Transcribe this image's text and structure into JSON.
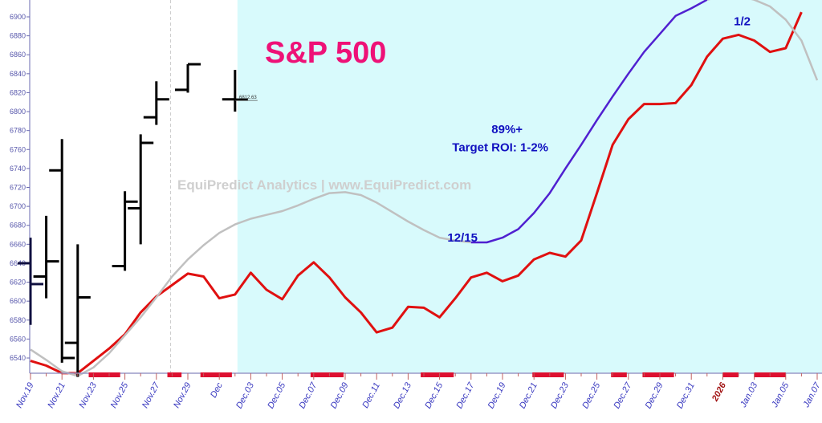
{
  "chart_data": {
    "type": "line",
    "title": "S&P 500",
    "watermark": "EquiPredict Analytics | www.EquiPredict.com",
    "ylim": [
      6520,
      6920
    ],
    "yticks": [
      6540,
      6560,
      6580,
      6600,
      6620,
      6640,
      6660,
      6680,
      6700,
      6720,
      6740,
      6760,
      6780,
      6800,
      6820,
      6840,
      6860,
      6880,
      6900
    ],
    "xlim": [
      0,
      50.3
    ],
    "xticks": [
      {
        "i": 0,
        "label": "Nov.19"
      },
      {
        "i": 2,
        "label": "Nov.21"
      },
      {
        "i": 4,
        "label": "Nov.23"
      },
      {
        "i": 6,
        "label": "Nov.25"
      },
      {
        "i": 8,
        "label": "Nov.27"
      },
      {
        "i": 10,
        "label": "Nov.29"
      },
      {
        "i": 12,
        "label": "Dec"
      },
      {
        "i": 14,
        "label": "Dec.03"
      },
      {
        "i": 16,
        "label": "Dec.05"
      },
      {
        "i": 18,
        "label": "Dec.07"
      },
      {
        "i": 20,
        "label": "Dec.09"
      },
      {
        "i": 22,
        "label": "Dec.11"
      },
      {
        "i": 24,
        "label": "Dec.13"
      },
      {
        "i": 26,
        "label": "Dec.15"
      },
      {
        "i": 28,
        "label": "Dec.17"
      },
      {
        "i": 30,
        "label": "Dec.19"
      },
      {
        "i": 32,
        "label": "Dec.21"
      },
      {
        "i": 34,
        "label": "Dec.23"
      },
      {
        "i": 36,
        "label": "Dec.25"
      },
      {
        "i": 38,
        "label": "Dec.27"
      },
      {
        "i": 40,
        "label": "Dec.29"
      },
      {
        "i": 42,
        "label": "Dec.31"
      },
      {
        "i": 44,
        "label": "2026",
        "year": true
      },
      {
        "i": 46,
        "label": "Jan.03"
      },
      {
        "i": 48,
        "label": "Jan.05"
      },
      {
        "i": 50,
        "label": "Jan.07"
      }
    ],
    "forecast_start_index": 13,
    "today_index": 9,
    "series": [
      {
        "name": "forecast-red",
        "color": "#e01010",
        "start": 0,
        "values": [
          6537,
          6532,
          6524,
          6524,
          6537,
          6550,
          6565,
          6588,
          6605,
          6617,
          6629,
          6626,
          6603,
          6607,
          6630,
          6612,
          6602,
          6627,
          6641,
          6625,
          6604,
          6588,
          6567,
          6572,
          6594,
          6593,
          6583,
          6603,
          6625,
          6630,
          6621,
          6627,
          6644,
          6651,
          6647,
          6664,
          6714,
          6765,
          6792,
          6808,
          6808,
          6809,
          6828,
          6858,
          6877,
          6881,
          6875,
          6863,
          6867,
          6905
        ]
      },
      {
        "name": "cycle-grey-1",
        "color": "#c0c0c0",
        "start": 0,
        "values": [
          6549,
          6538,
          6526,
          6521,
          6530,
          6545,
          6564,
          6583,
          6604,
          6626,
          6644,
          6659,
          6672,
          6681,
          6687,
          6691,
          6695,
          6701,
          6708,
          6714,
          6715,
          6712,
          6704,
          6694,
          6684,
          6675,
          6667,
          6664,
          6662
        ]
      },
      {
        "name": "cycle-blue",
        "color": "#5020d0",
        "start": 28,
        "values": [
          6662,
          6662,
          6667,
          6676,
          6693,
          6714,
          6740,
          6765,
          6791,
          6816,
          6840,
          6863,
          6882,
          6901,
          6909,
          6918
        ]
      },
      {
        "name": "cycle-grey-2",
        "color": "#c0c0c0",
        "start": 43,
        "values": [
          6918,
          6922,
          6922,
          6918,
          6911,
          6897,
          6875,
          6833
        ]
      }
    ],
    "ohlc": [
      {
        "i": 0,
        "open": 6640,
        "high": 6667,
        "low": 6575,
        "close": 6618
      },
      {
        "i": 1,
        "open": 6626,
        "high": 6690,
        "low": 6603,
        "close": 6642
      },
      {
        "i": 2,
        "open": 6738,
        "high": 6771,
        "low": 6535,
        "close": 6540
      },
      {
        "i": 3,
        "open": 6556,
        "high": 6660,
        "low": 6520,
        "close": 6604
      },
      {
        "i": 6,
        "open": 6637,
        "high": 6716,
        "low": 6632,
        "close": 6705
      },
      {
        "i": 7,
        "open": 6698,
        "high": 6776,
        "low": 6660,
        "close": 6767
      },
      {
        "i": 8,
        "open": 6794,
        "high": 6832,
        "low": 6786,
        "close": 6813
      },
      {
        "i": 10,
        "open": 6823,
        "high": 6850,
        "low": 6820,
        "close": 6850
      },
      {
        "i": 13,
        "open": 6813,
        "high": 6844,
        "low": 6800,
        "close": 6812.63
      }
    ],
    "last_price_label": "6812.63",
    "highlight_ranges": [
      [
        3.7,
        5.7
      ],
      [
        8.7,
        9.6
      ],
      [
        10.8,
        12.8
      ],
      [
        17.8,
        19.9
      ],
      [
        24.8,
        26.9
      ],
      [
        31.9,
        33.9
      ],
      [
        36.9,
        37.9
      ],
      [
        38.9,
        40.9
      ],
      [
        44,
        45
      ],
      [
        46,
        48
      ]
    ],
    "annotations": [
      {
        "text": "89%+",
        "i": 29.3,
        "v": 6777
      },
      {
        "text": "Target ROI: 1-2%",
        "i": 26.8,
        "v": 6758
      },
      {
        "text": "12/15",
        "i": 26.5,
        "v": 6663
      },
      {
        "text": "1/2",
        "i": 44.7,
        "v": 6891
      }
    ]
  }
}
